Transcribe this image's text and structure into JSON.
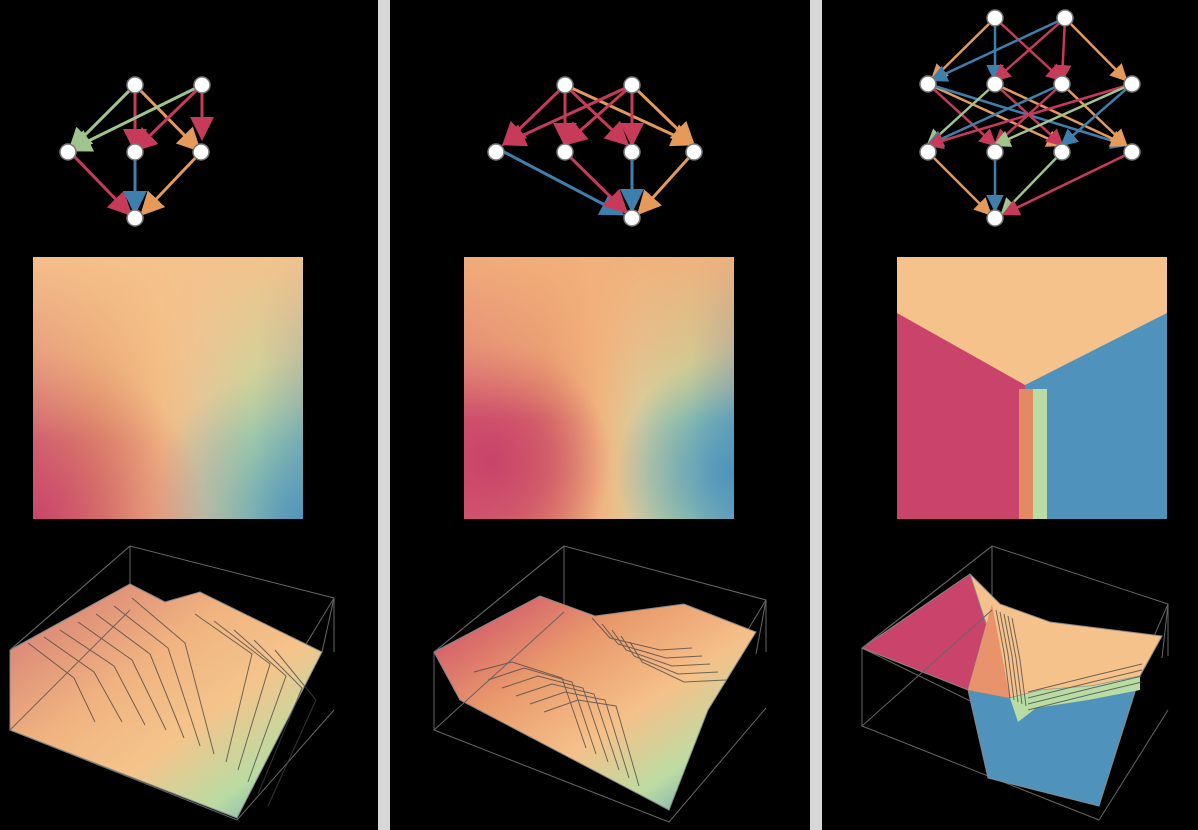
{
  "figure": {
    "panels": [
      {
        "id": "panel-1",
        "layout": "diamond-small",
        "heatmap_style": "smooth"
      },
      {
        "id": "panel-2",
        "layout": "diamond-wide",
        "heatmap_style": "smooth-split"
      },
      {
        "id": "panel-3",
        "layout": "dense-lattice",
        "heatmap_style": "sharp-three-region"
      }
    ],
    "colors": {
      "magenta": "#c9436a",
      "coral": "#e08a63",
      "peach": "#f6c28b",
      "pale-green": "#b8dca3",
      "teal-blue": "#4f93bc",
      "arrow-red": "#c73a59",
      "arrow-orange": "#e69a5a",
      "arrow-green": "#9fc48d",
      "arrow-blue": "#3f7fae",
      "separator": "#d7d7d7",
      "background": "#000000"
    }
  }
}
